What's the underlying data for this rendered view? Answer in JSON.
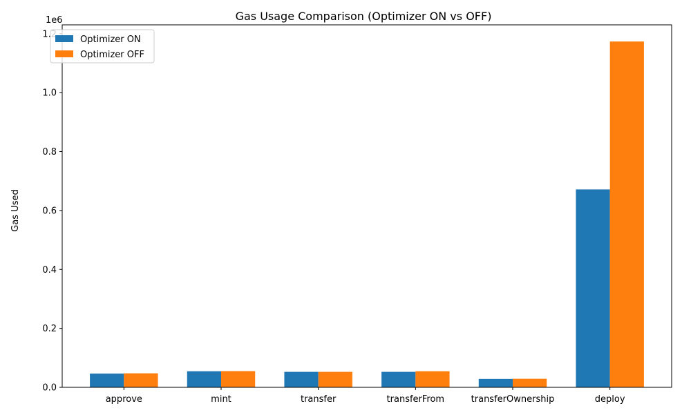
{
  "chart_data": {
    "type": "bar",
    "title": "Gas Usage Comparison (Optimizer ON vs OFF)",
    "xlabel": "",
    "ylabel": "Gas Used",
    "scale_label": "1e6",
    "ylim": [
      0,
      1.23
    ],
    "yticks": [
      "0.0",
      "0.2",
      "0.4",
      "0.6",
      "0.8",
      "1.0",
      "1.2"
    ],
    "categories": [
      "approve",
      "mint",
      "transfer",
      "transferFrom",
      "transferOwnership",
      "deploy"
    ],
    "series": [
      {
        "name": "Optimizer ON",
        "color": "#1f77b4",
        "values": [
          0.0465,
          0.0545,
          0.0525,
          0.0525,
          0.0285,
          0.6715
        ]
      },
      {
        "name": "Optimizer OFF",
        "color": "#ff7f0e",
        "values": [
          0.0475,
          0.055,
          0.0525,
          0.0545,
          0.029,
          1.1735
        ]
      }
    ],
    "legend_position": "top-left",
    "grid": false
  }
}
